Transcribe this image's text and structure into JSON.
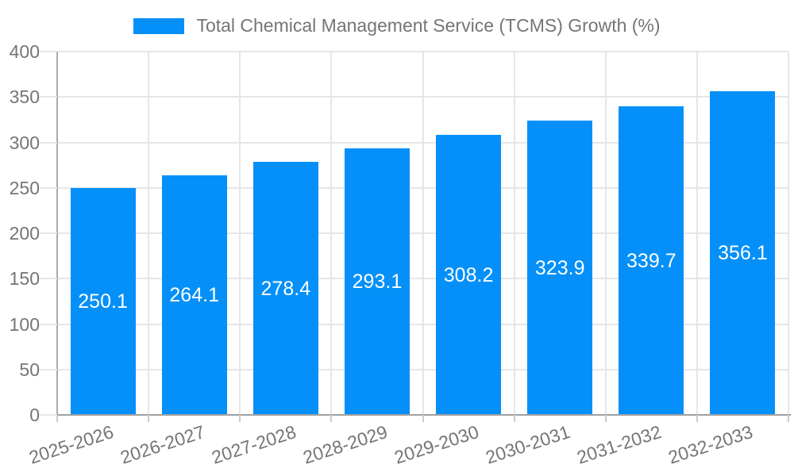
{
  "legend": {
    "label": "Total Chemical Management Service (TCMS) Growth (%)"
  },
  "chart_data": {
    "type": "bar",
    "title": "Total Chemical Management Service (TCMS) Growth (%)",
    "categories": [
      "2025-2026",
      "2026-2027",
      "2027-2028",
      "2028-2029",
      "2029-2030",
      "2030-2031",
      "2031-2032",
      "2032-2033"
    ],
    "values": [
      250.1,
      264.1,
      278.4,
      293.1,
      308.2,
      323.9,
      339.7,
      356.1
    ],
    "value_labels": [
      "250.1",
      "264.1",
      "278.4",
      "293.1",
      "308.2",
      "323.9",
      "339.7",
      "356.1"
    ],
    "xlabel": "",
    "ylabel": "",
    "ylim": [
      0,
      400
    ],
    "yticks": [
      0,
      50,
      100,
      150,
      200,
      250,
      300,
      350,
      400
    ],
    "grid": "on",
    "legend_position": "top-center",
    "colors": {
      "bar": "#0490f8",
      "value_label_text": "#ffffff",
      "axis_text": "#757575",
      "gridline": "#e6e6e6",
      "tick": "#cccccc",
      "axis_line": "#a0a0a0"
    }
  }
}
